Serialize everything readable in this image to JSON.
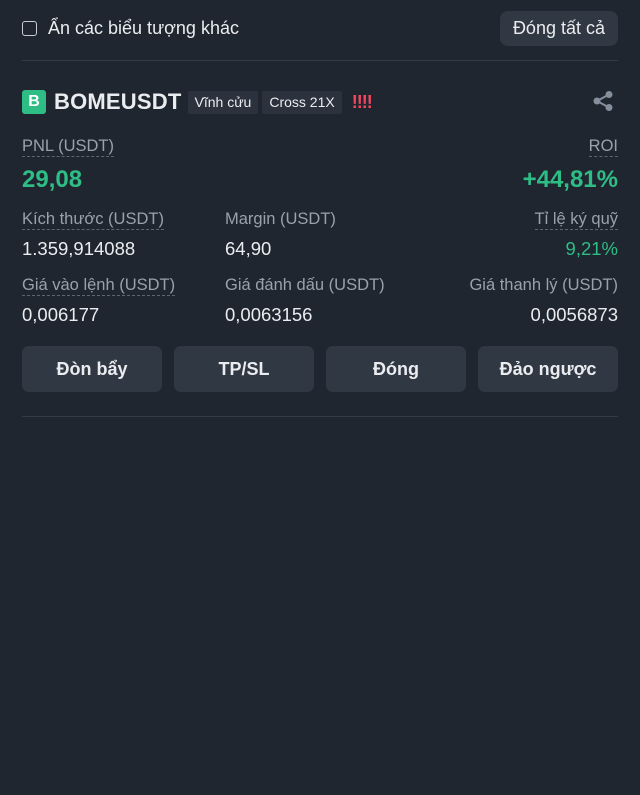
{
  "header": {
    "hide_symbols_label": "Ẩn các biểu tượng khác",
    "close_all_label": "Đóng tất cả"
  },
  "position": {
    "side_badge": "B",
    "symbol": "BOMEUSDT",
    "contract_type": "Vĩnh cửu",
    "margin_mode": "Cross 21X",
    "risk_indicator": "!!!!",
    "pnl_label": "PNL (USDT)",
    "pnl_value": "29,08",
    "roi_label": "ROI",
    "roi_value": "+44,81%",
    "size_label": "Kích thước (USDT)",
    "size_value": "1.359,914088",
    "margin_label": "Margin (USDT)",
    "margin_value": "64,90",
    "margin_ratio_label": "Tỉ lệ ký quỹ",
    "margin_ratio_value": "9,21%",
    "entry_price_label": "Giá vào lệnh (USDT)",
    "entry_price_value": "0,006177",
    "mark_price_label": "Giá đánh dấu (USDT)",
    "mark_price_value": "0,0063156",
    "liq_price_label": "Giá thanh lý (USDT)",
    "liq_price_value": "0,0056873"
  },
  "actions": {
    "leverage": "Đòn bẩy",
    "tpsl": "TP/SL",
    "close": "Đóng",
    "reverse": "Đảo ngược"
  },
  "icons": {
    "share": "share-icon",
    "checkbox": "checkbox-icon"
  },
  "colors": {
    "background": "#1f2630",
    "positive": "#2ebd85",
    "negative": "#f6465d",
    "button": "#303843"
  }
}
